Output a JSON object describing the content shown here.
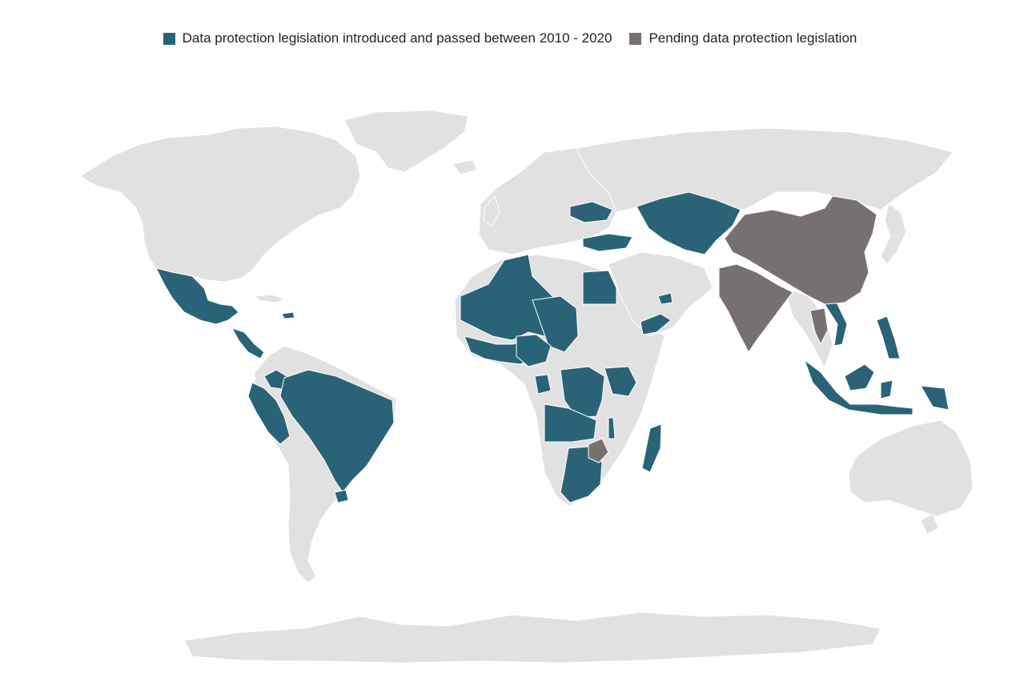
{
  "legend": {
    "items": [
      {
        "label": "Data protection legislation introduced and passed between 2010 - 2020",
        "color": "#2a6378"
      },
      {
        "label": "Pending data protection legislation",
        "color": "#777070"
      }
    ]
  },
  "colors": {
    "land": "#e1e1e1",
    "passed": "#2a6378",
    "pending": "#777070",
    "border": "#ffffff"
  },
  "regions": {
    "passed": [
      "Mexico",
      "Guatemala",
      "Honduras",
      "Nicaragua",
      "Costa Rica",
      "Panama",
      "Dominican Republic",
      "Peru",
      "Ecuador",
      "Colombia",
      "Brazil",
      "Uruguay",
      "Algeria",
      "Mauritania",
      "Mali",
      "Niger",
      "Chad",
      "Senegal",
      "Guinea",
      "Sierra Leone",
      "Ivory Coast",
      "Ghana",
      "Burkina Faso",
      "Nigeria",
      "Benin",
      "Togo",
      "Egypt",
      "Gabon",
      "DR Congo",
      "Congo",
      "Angola",
      "Zambia",
      "Malawi",
      "Uganda",
      "Kenya",
      "Rwanda",
      "Botswana",
      "South Africa",
      "Madagascar",
      "Ukraine",
      "Turkey",
      "Kazakhstan",
      "Uzbekistan",
      "Kyrgyzstan",
      "Tajikistan",
      "Yemen",
      "Qatar",
      "UAE",
      "Bhutan",
      "Vietnam",
      "Malaysia",
      "Indonesia",
      "Philippines",
      "Papua New Guinea"
    ],
    "pending": [
      "China",
      "India",
      "Thailand",
      "Zimbabwe"
    ]
  }
}
